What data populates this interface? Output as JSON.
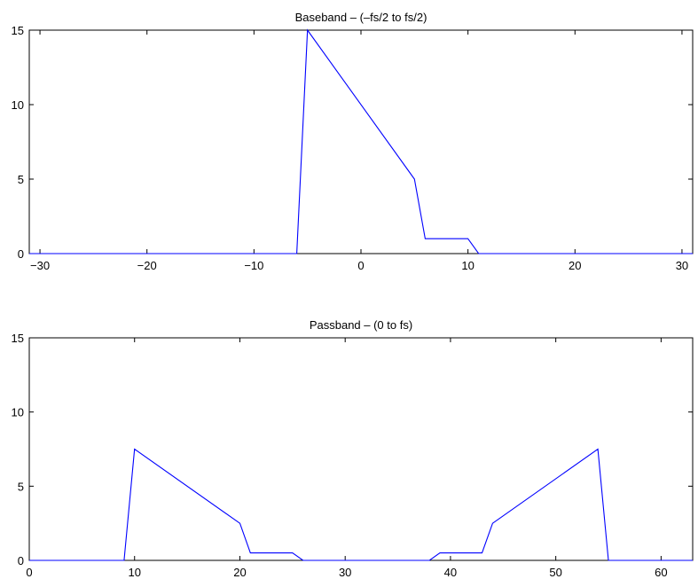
{
  "chart_data": [
    {
      "type": "line",
      "title": "Baseband – (–fs/2 to fs/2)",
      "xlim": [
        -31,
        31
      ],
      "ylim": [
        0,
        15
      ],
      "xticks": [
        -30,
        -20,
        -10,
        0,
        10,
        20,
        30
      ],
      "xtick_labels": [
        "−30",
        "−20",
        "−10",
        "0",
        "10",
        "20",
        "30"
      ],
      "yticks": [
        0,
        5,
        10,
        15
      ],
      "ytick_labels": [
        "0",
        "5",
        "10",
        "15"
      ],
      "series": [
        {
          "color": "#0000ff",
          "x": [
            -31,
            -6,
            -5,
            5,
            6,
            10,
            11,
            31
          ],
          "y": [
            0,
            0,
            15,
            5,
            1,
            1,
            0,
            0
          ]
        }
      ]
    },
    {
      "type": "line",
      "title": "Passband – (0 to fs)",
      "xlim": [
        0,
        63
      ],
      "ylim": [
        0,
        15
      ],
      "xticks": [
        0,
        10,
        20,
        30,
        40,
        50,
        60
      ],
      "xtick_labels": [
        "0",
        "10",
        "20",
        "30",
        "40",
        "50",
        "60"
      ],
      "yticks": [
        0,
        5,
        10,
        15
      ],
      "ytick_labels": [
        "0",
        "5",
        "10",
        "15"
      ],
      "series": [
        {
          "color": "#0000ff",
          "x": [
            0,
            9,
            10,
            20,
            21,
            25,
            26,
            38,
            39,
            43,
            44,
            54,
            55,
            63
          ],
          "y": [
            0,
            0,
            7.5,
            2.5,
            0.5,
            0.5,
            0,
            0,
            0.5,
            0.5,
            2.5,
            7.5,
            0,
            0
          ]
        }
      ]
    }
  ]
}
